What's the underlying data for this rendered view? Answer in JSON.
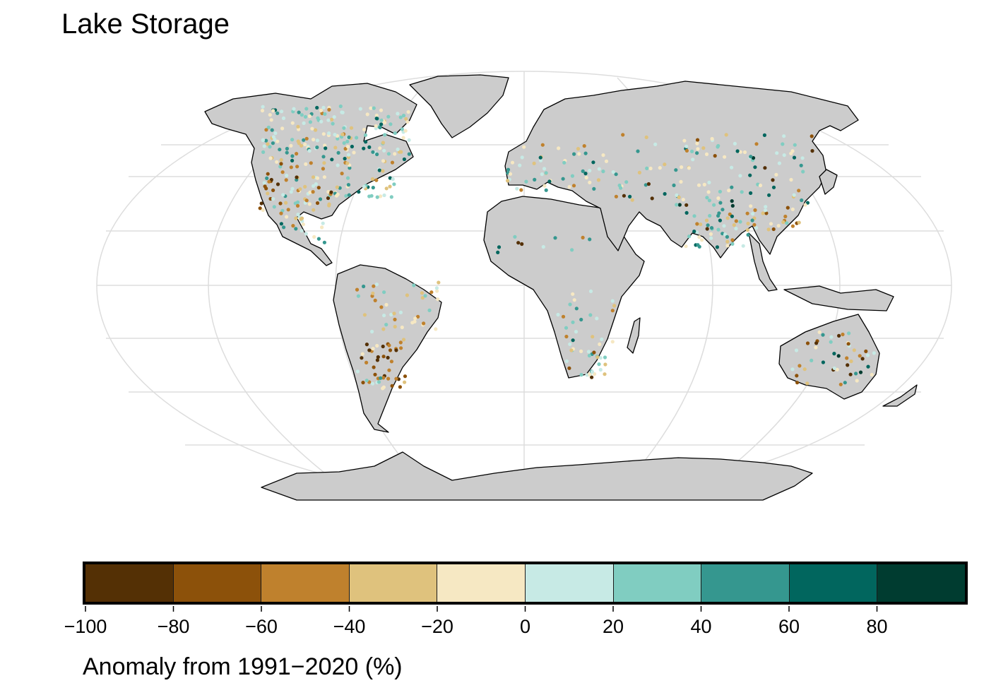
{
  "title": "Lake Storage",
  "legend": {
    "title": "Anomaly from 1991−2020 (%)",
    "ticks": [
      "−100",
      "−80",
      "−60",
      "−40",
      "−20",
      "0",
      "20",
      "40",
      "60",
      "80"
    ],
    "colors": [
      "#543005",
      "#8c510a",
      "#bf812d",
      "#dfc27d",
      "#f6e8c3",
      "#c7eae5",
      "#80cdc1",
      "#35978f",
      "#01665e",
      "#003c30"
    ]
  },
  "map": {
    "land_color": "#cccccc",
    "graticule_color": "#dddddd",
    "ocean_color": "#ffffff"
  }
}
